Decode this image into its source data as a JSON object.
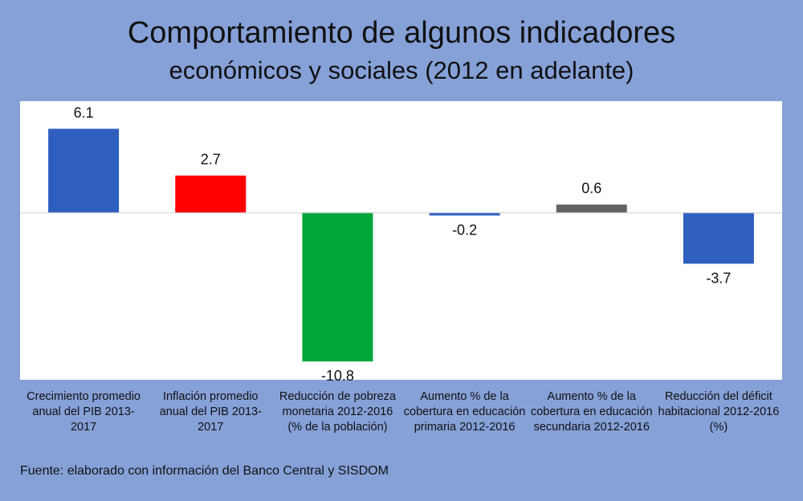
{
  "title": "Comportamiento de algunos indicadores",
  "subtitle": "económicos y sociales (2012 en adelante)",
  "source": "Fuente: elaborado con información del Banco Central y SISDOM",
  "chart_data": {
    "type": "bar",
    "title": "Comportamiento de algunos indicadores económicos y sociales (2012 en adelante)",
    "categories": [
      "Crecimiento promedio anual del PIB 2013-2017",
      "Inflación promedio anual del PIB 2013-2017",
      "Reducción de pobreza monetaria 2012-2016 (% de la población)",
      "Aumento % de la cobertura en educación primaria 2012-2016",
      "Aumento % de la cobertura en educación secundaria 2012-2016",
      "Reducción del déficit habitacional 2012-2016 (%)"
    ],
    "category_lines": [
      [
        "Crecimiento promedio",
        "anual del PIB 2013-",
        "2017"
      ],
      [
        "Inflación promedio",
        "anual del PIB 2013-",
        "2017"
      ],
      [
        "Reducción de pobreza",
        "monetaria 2012-2016",
        "(% de la población)"
      ],
      [
        "Aumento % de la",
        "cobertura en educación",
        "primaria 2012-2016"
      ],
      [
        "Aumento % de la",
        "cobertura en educación",
        "secundaria 2012-2016"
      ],
      [
        "Reducción del déficit",
        "habitacional 2012-2016",
        "(%)"
      ]
    ],
    "values": [
      6.1,
      2.7,
      -10.8,
      -0.2,
      0.6,
      -3.7
    ],
    "labels": [
      "6.1",
      "2.7",
      "-10.8",
      "-0.2",
      "0.6",
      "-3.7"
    ],
    "colors": [
      "#2e5fbf",
      "#ff0000",
      "#00a83b",
      "#2e5fbf",
      "#636363",
      "#2e5fbf"
    ],
    "ylim": [
      -12,
      8
    ],
    "grid": false,
    "legend": "none"
  }
}
